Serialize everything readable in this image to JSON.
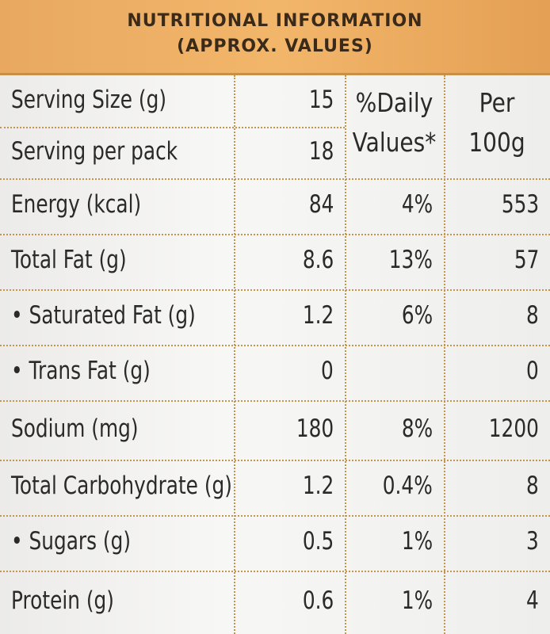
{
  "header": {
    "title": [
      "NUTRITIONAL INFORMATION",
      "(APPROX. VALUES)"
    ]
  },
  "table": {
    "column_headers": {
      "daily_values": [
        "%Daily",
        "Values*"
      ],
      "per_100g": [
        "Per",
        "100g"
      ]
    },
    "serving": [
      {
        "label": "Serving Size (g)",
        "amount": "15"
      },
      {
        "label": "Serving per pack",
        "amount": "18"
      }
    ],
    "nutrients": [
      {
        "label": "Energy (kcal)",
        "amount": "84",
        "daily_value": "4%",
        "per_100g": "553"
      },
      {
        "label": "Total Fat (g)",
        "amount": "8.6",
        "daily_value": "13%",
        "per_100g": "57"
      },
      {
        "label": "• Saturated Fat (g)",
        "amount": "1.2",
        "daily_value": "6%",
        "per_100g": "8"
      },
      {
        "label": "• Trans Fat (g)",
        "amount": "0",
        "per_100g": "0"
      },
      {
        "label": "Sodium (mg)",
        "amount": "180",
        "daily_value": "8%",
        "per_100g": "1200"
      },
      {
        "label": "Total Carbohydrate (g)",
        "amount": "1.2",
        "daily_value": "0.4%",
        "per_100g": "8"
      },
      {
        "label": "• Sugars (g)",
        "amount": "0.5",
        "daily_value": "1%",
        "per_100g": "3"
      },
      {
        "label": "Protein (g)",
        "amount": "0.6",
        "daily_value": "1%",
        "per_100g": "4"
      }
    ]
  }
}
